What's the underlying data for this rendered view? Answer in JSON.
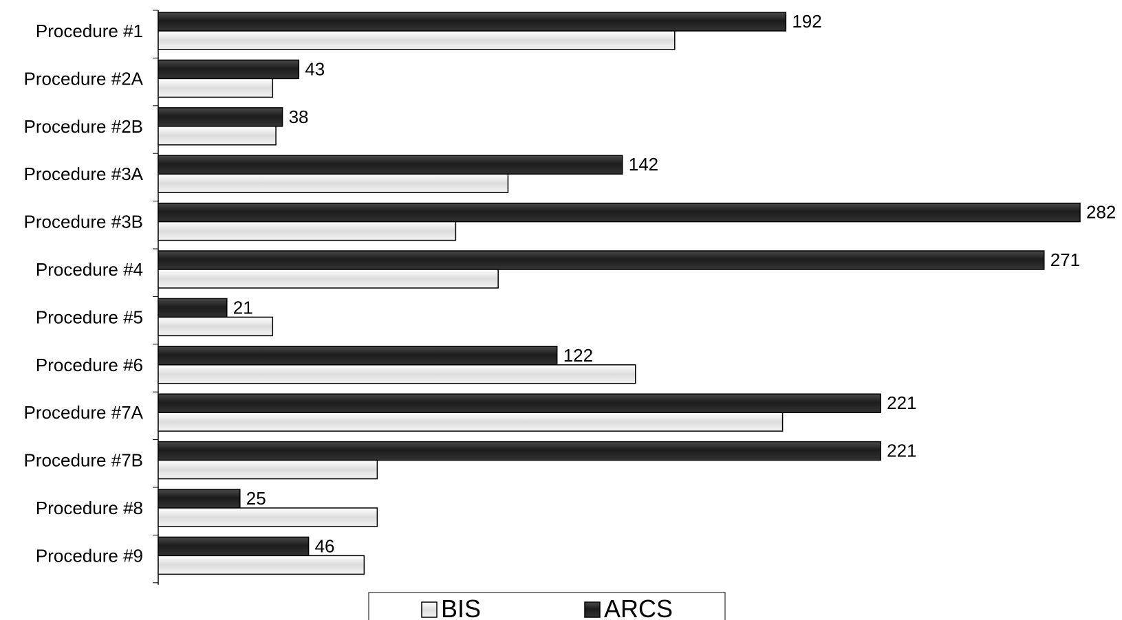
{
  "chart_data": {
    "type": "bar",
    "orientation": "horizontal",
    "categories": [
      "Procedure #1",
      "Procedure #2A",
      "Procedure #2B",
      "Procedure #3A",
      "Procedure #3B",
      "Procedure #4",
      "Procedure #5",
      "Procedure #6",
      "Procedure #7A",
      "Procedure #7B",
      "Procedure #8",
      "Procedure #9"
    ],
    "series": [
      {
        "name": "ARCS",
        "color": "#2b2b2b",
        "values": [
          192,
          43,
          38,
          142,
          282,
          271,
          21,
          122,
          221,
          221,
          25,
          46
        ],
        "labels": [
          "192",
          "43",
          "38",
          "142",
          "282",
          "271",
          "21",
          "122",
          "221",
          "221",
          "25",
          "46"
        ]
      },
      {
        "name": "BIS",
        "color": "#e6e6e6",
        "values": [
          158,
          35,
          36,
          107,
          91,
          104,
          35,
          146,
          191,
          67,
          67,
          63
        ]
      }
    ],
    "title": "",
    "xlabel": "",
    "ylabel": "",
    "xlim": [
      0,
      282
    ],
    "grid": false,
    "legend_position": "bottom"
  }
}
